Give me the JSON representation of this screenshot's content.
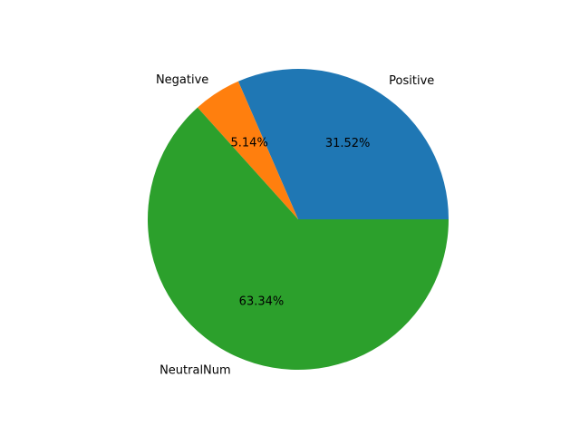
{
  "chart_data": {
    "type": "pie",
    "title": "",
    "slices": [
      {
        "label": "Positive",
        "value": 31.52,
        "pct_label": "31.52%",
        "color": "#1f77b4"
      },
      {
        "label": "Negative",
        "value": 5.14,
        "pct_label": "5.14%",
        "color": "#ff7f0e"
      },
      {
        "label": "NeutralNum",
        "value": 63.34,
        "pct_label": "63.34%",
        "color": "#2ca02c"
      }
    ],
    "start_angle_deg": 0,
    "direction": "counterclockwise",
    "autopct": true
  }
}
